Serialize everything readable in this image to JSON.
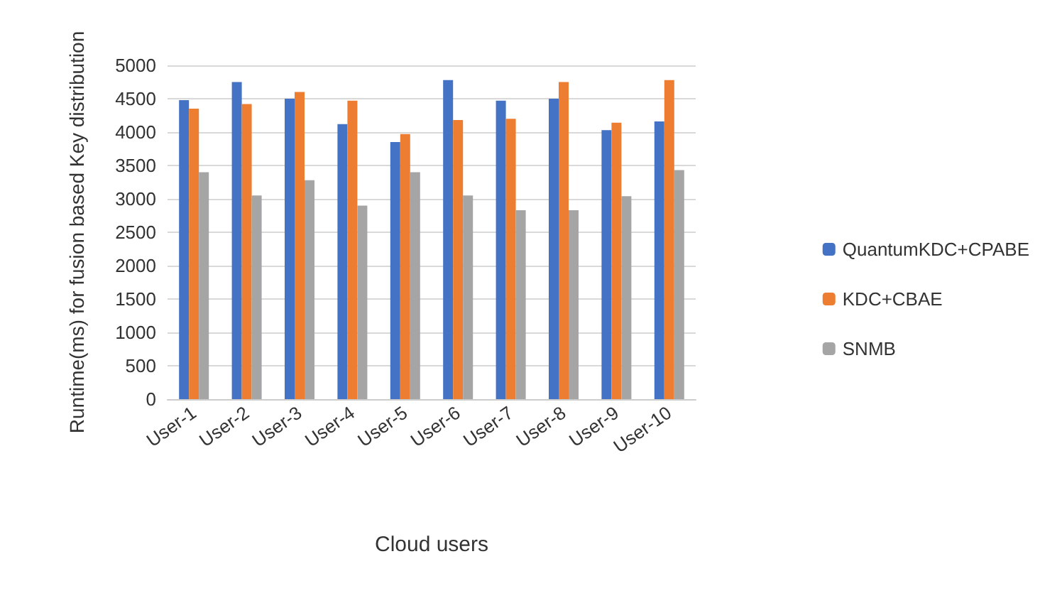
{
  "chart_data": {
    "type": "bar",
    "xlabel": "Cloud users",
    "ylabel": "Runtime(ms) for fusion based Key distribution",
    "categories": [
      "User-1",
      "User-2",
      "User-3",
      "User-4",
      "User-5",
      "User-6",
      "User-7",
      "User-8",
      "User-9",
      "User-10"
    ],
    "series": [
      {
        "name": "QuantumKDC+CPABE",
        "color": "#4472c4",
        "values": [
          4480,
          4750,
          4500,
          4120,
          3850,
          4780,
          4470,
          4500,
          4030,
          4160
        ]
      },
      {
        "name": "KDC+CBAE",
        "color": "#ed7d31",
        "values": [
          4350,
          4420,
          4600,
          4470,
          3970,
          4180,
          4200,
          4750,
          4140,
          4780
        ]
      },
      {
        "name": "SNMB",
        "color": "#a5a5a5",
        "values": [
          3400,
          3050,
          3280,
          2900,
          3400,
          3050,
          2830,
          2830,
          3040,
          3430
        ]
      }
    ],
    "ylim": [
      0,
      5000
    ],
    "yticks": [
      0,
      500,
      1000,
      1500,
      2000,
      2500,
      3000,
      3500,
      4000,
      4500,
      5000
    ],
    "grid": "y",
    "legend": "right"
  }
}
